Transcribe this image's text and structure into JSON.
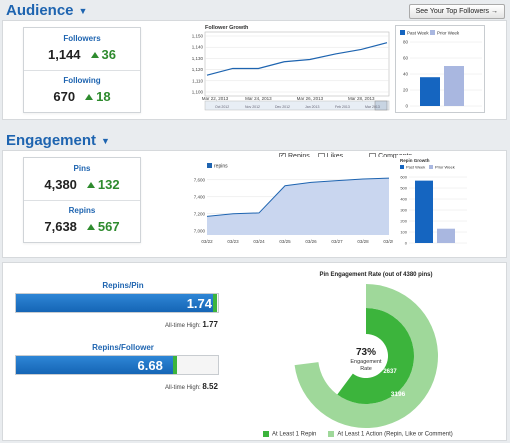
{
  "audience": {
    "title": "Audience",
    "top_followers_button": "See Your Top Followers →",
    "followers": {
      "label": "Followers",
      "value": "1,144",
      "delta": "36"
    },
    "following": {
      "label": "Following",
      "value": "670",
      "delta": "18"
    }
  },
  "follower_growth": {
    "title": "Follower Growth",
    "y_ticks": [
      "1,150",
      "1,140",
      "1,130",
      "1,120",
      "1,110",
      "1,100"
    ],
    "x_ticks": [
      "Mar 22, 2013",
      "Mar 24, 2013",
      "Mar 26, 2013",
      "Mar 28, 2013"
    ],
    "nav_ticks": [
      "Oct 2012",
      "Nov 2012",
      "Dec 2012",
      "Jan 2013",
      "Feb 2013",
      "Mar 2013"
    ]
  },
  "audience_compare": {
    "legend": [
      "Past Week",
      "Prior Week"
    ],
    "y_ticks": [
      "80",
      "60",
      "40",
      "20",
      "0"
    ]
  },
  "engagement": {
    "title": "Engagement",
    "pins": {
      "label": "Pins",
      "value": "4,380",
      "delta": "132"
    },
    "repins": {
      "label": "Repins",
      "value": "7,638",
      "delta": "567"
    },
    "toggles": {
      "repins": "Repins",
      "likes": "Likes",
      "comments": "Comments"
    }
  },
  "repins_chart": {
    "legend": "repins",
    "y_ticks": [
      "7,600",
      "7,400",
      "7,200",
      "7,000"
    ],
    "x_ticks": [
      "03/22",
      "03/23",
      "03/24",
      "03/25",
      "03/26",
      "03/27",
      "03/28",
      "03/29"
    ]
  },
  "repin_growth": {
    "title": "Repin Growth",
    "legend": [
      "Past Week",
      "Prior Week"
    ],
    "y_ticks": [
      "600",
      "500",
      "400",
      "300",
      "200",
      "100",
      "0"
    ]
  },
  "repins_per_pin": {
    "title": "Repins/Pin",
    "value": "1.74",
    "alltime_label": "All-time High:",
    "alltime_value": "1.77",
    "fill_fraction": 0.983
  },
  "repins_per_follower": {
    "title": "Repins/Follower",
    "value": "6.68",
    "alltime_label": "All-time High:",
    "alltime_value": "8.52",
    "fill_fraction": 0.784
  },
  "pin_engagement": {
    "title": "Pin Engagement Rate (out of 4380 pins)",
    "center_pct": "73%",
    "center_label_1": "Engagement",
    "center_label_2": "Rate",
    "inner_value": "2637",
    "outer_value": "3196",
    "legend": [
      "At Least 1 Repin",
      "At Least 1 Action (Repin, Like or Comment)"
    ],
    "colors": {
      "inner": "#3cb43c",
      "outer": "#9fd89a"
    }
  },
  "chart_data": [
    {
      "type": "line",
      "title": "Follower Growth",
      "x": [
        "Mar 22, 2013",
        "Mar 23, 2013",
        "Mar 24, 2013",
        "Mar 25, 2013",
        "Mar 26, 2013",
        "Mar 27, 2013",
        "Mar 28, 2013",
        "Mar 29, 2013"
      ],
      "values": [
        1115,
        1121,
        1121,
        1127,
        1129,
        1134,
        1138,
        1144
      ],
      "ylim": [
        1100,
        1150
      ]
    },
    {
      "type": "bar",
      "categories": [
        "Past Week",
        "Prior Week"
      ],
      "values": [
        36,
        50
      ],
      "ylim": [
        0,
        80
      ]
    },
    {
      "type": "area",
      "series": [
        {
          "name": "repins",
          "values": [
            7170,
            7200,
            7210,
            7530,
            7570,
            7590,
            7610,
            7620
          ]
        }
      ],
      "categories": [
        "03/22",
        "03/23",
        "03/24",
        "03/25",
        "03/26",
        "03/27",
        "03/28",
        "03/29"
      ],
      "ylim": [
        7000,
        7700
      ]
    },
    {
      "type": "bar",
      "title": "Repin Growth",
      "categories": [
        "Past Week",
        "Prior Week"
      ],
      "values": [
        567,
        130
      ],
      "ylim": [
        0,
        600
      ]
    },
    {
      "type": "pie",
      "title": "Pin Engagement Rate (out of 4380 pins)",
      "categories": [
        "At Least 1 Repin",
        "At Least 1 Action (Repin, Like or Comment)"
      ],
      "values": [
        2637,
        3196
      ],
      "total": 4380
    }
  ]
}
